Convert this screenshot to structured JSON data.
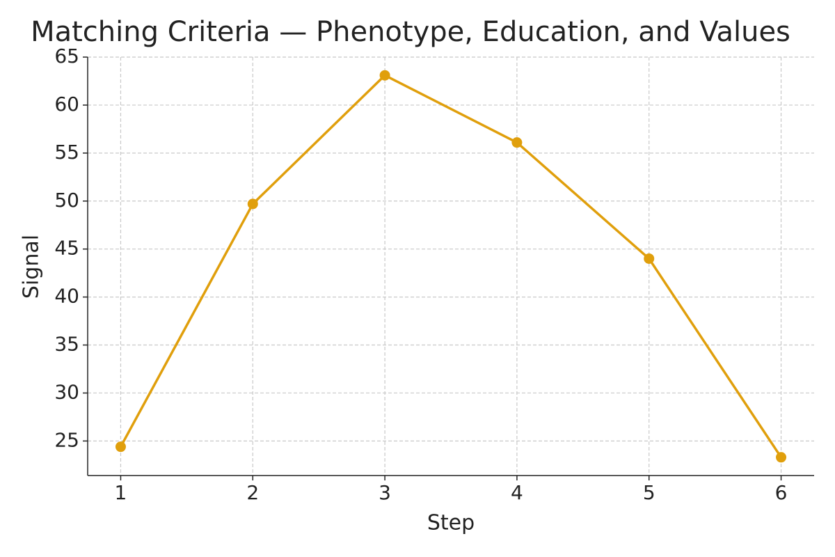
{
  "chart_data": {
    "type": "line",
    "title": "Matching Criteria — Phenotype, Education, and Values",
    "x_label": "Step",
    "y_label": "Signal",
    "x": [
      1,
      2,
      3,
      4,
      5,
      6
    ],
    "series": [
      {
        "color": "#e09f0c",
        "values": [
          24.4,
          49.7,
          63.1,
          56.1,
          44.0,
          23.3
        ]
      }
    ],
    "xlim": [
      0.75,
      6.25
    ],
    "ylim": [
      21.4,
      65
    ],
    "xticks": [
      1,
      2,
      3,
      4,
      5,
      6
    ],
    "yticks": [
      25,
      30,
      35,
      40,
      45,
      50,
      55,
      60,
      65
    ],
    "grid": true
  }
}
